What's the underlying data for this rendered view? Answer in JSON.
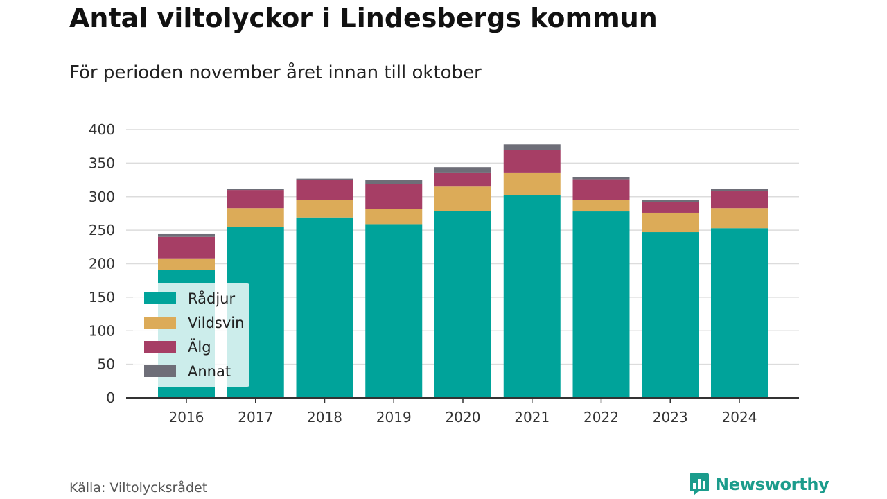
{
  "title": "Antal viltolyckor i Lindesbergs kommun",
  "subtitle": "För perioden november året innan till oktober",
  "source": "Källa: Viltolycksrådet",
  "brand": {
    "name": "Newsworthy",
    "color": "#1b9c8c",
    "icon": "newsworthy-logo-icon"
  },
  "chart_data": {
    "type": "bar",
    "stacked": true,
    "categories": [
      "2016",
      "2017",
      "2018",
      "2019",
      "2020",
      "2021",
      "2022",
      "2023",
      "2024"
    ],
    "series": [
      {
        "name": "Rådjur",
        "color": "#00a39a",
        "values": [
          191,
          255,
          269,
          259,
          279,
          302,
          278,
          247,
          253
        ]
      },
      {
        "name": "Vildsvin",
        "color": "#dcab58",
        "values": [
          17,
          28,
          26,
          23,
          36,
          34,
          17,
          29,
          30
        ]
      },
      {
        "name": "Älg",
        "color": "#a63e65",
        "values": [
          32,
          27,
          30,
          37,
          21,
          34,
          31,
          16,
          25
        ]
      },
      {
        "name": "Annat",
        "color": "#6e6e78",
        "values": [
          5,
          2,
          2,
          6,
          8,
          8,
          3,
          3,
          4
        ]
      }
    ],
    "yticks": [
      0,
      50,
      100,
      150,
      200,
      250,
      300,
      350,
      400
    ],
    "ylim": [
      0,
      400
    ],
    "grid": true,
    "legend_position": "bottom-left"
  }
}
